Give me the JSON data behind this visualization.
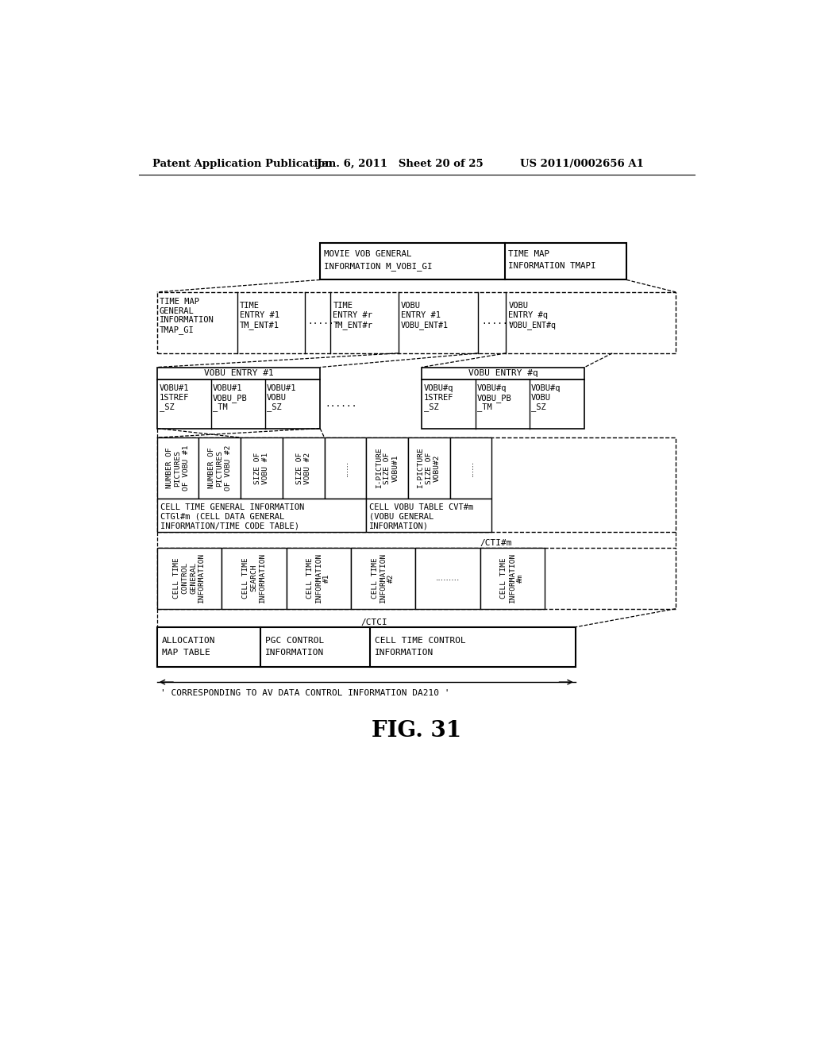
{
  "header_left": "Patent Application Publication",
  "header_mid": "Jan. 6, 2011   Sheet 20 of 25",
  "header_right": "US 2011/0002656 A1",
  "figure_label": "FIG. 31",
  "bg_color": "#ffffff"
}
